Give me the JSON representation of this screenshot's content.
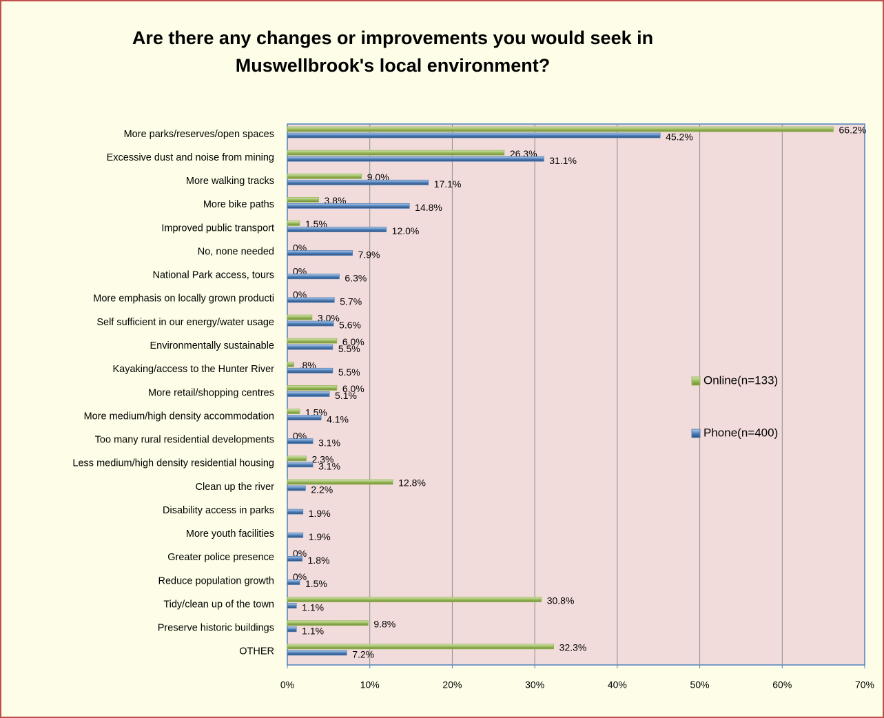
{
  "chart_data": {
    "type": "bar",
    "orientation": "horizontal",
    "title": "Are there any changes or improvements you would seek in Muswellbrook's local environment?",
    "categories": [
      "More parks/reserves/open spaces",
      "Excessive dust and noise from mining",
      "More walking tracks",
      "More bike paths",
      "Improved public transport",
      "No, none needed",
      "National Park access, tours",
      "More emphasis on locally grown producti",
      "Self sufficient in our energy/water usage",
      "Environmentally sustainable",
      "Kayaking/access to the Hunter River",
      "More retail/shopping centres",
      "More medium/high density accommodation",
      "Too many rural residential developments",
      "Less medium/high density residential housing",
      "Clean up the river",
      "Disability access in parks",
      "More youth facilities",
      "Greater police presence",
      "Reduce population growth",
      "Tidy/clean up of the town",
      "Preserve historic buildings",
      "OTHER"
    ],
    "series": [
      {
        "name": "Online(n=133)",
        "color": "#9bbb59",
        "values": [
          66.2,
          26.3,
          9.0,
          3.8,
          1.5,
          0,
          0,
          0,
          3.0,
          6.0,
          0.8,
          6.0,
          1.5,
          0,
          2.3,
          12.8,
          null,
          null,
          0,
          0,
          30.8,
          9.8,
          32.3
        ],
        "value_labels": [
          "66.2%",
          "26.3%",
          "9.0%",
          "3.8%",
          "1.5%",
          "0%",
          "0%",
          "0%",
          "3.0%",
          "6.0%",
          ".8%",
          "6.0%",
          "1.5%",
          "0%",
          "2.3%",
          "12.8%",
          null,
          null,
          "0%",
          "0%",
          "30.8%",
          "9.8%",
          "32.3%"
        ]
      },
      {
        "name": "Phone(n=400)",
        "color": "#4f81bd",
        "values": [
          45.2,
          31.1,
          17.1,
          14.8,
          12.0,
          7.9,
          6.3,
          5.7,
          5.6,
          5.5,
          5.5,
          5.1,
          4.1,
          3.1,
          3.1,
          2.2,
          1.9,
          1.9,
          1.8,
          1.5,
          1.1,
          1.1,
          7.2
        ],
        "value_labels": [
          "45.2%",
          "31.1%",
          "17.1%",
          "14.8%",
          "12.0%",
          "7.9%",
          "6.3%",
          "5.7%",
          "5.6%",
          "5.5%",
          "5.5%",
          "5.1%",
          "4.1%",
          "3.1%",
          "3.1%",
          "2.2%",
          "1.9%",
          "1.9%",
          "1.8%",
          "1.5%",
          "1.1%",
          "1.1%",
          "7.2%"
        ]
      }
    ],
    "xlim": [
      0,
      70
    ],
    "xticks": [
      {
        "value": 0,
        "label": "0%"
      },
      {
        "value": 10,
        "label": "10%"
      },
      {
        "value": 20,
        "label": "20%"
      },
      {
        "value": 30,
        "label": "30%"
      },
      {
        "value": 40,
        "label": "40%"
      },
      {
        "value": 50,
        "label": "50%"
      },
      {
        "value": 60,
        "label": "60%"
      },
      {
        "value": 70,
        "label": "70%"
      }
    ],
    "grid": true,
    "legend": "right"
  }
}
